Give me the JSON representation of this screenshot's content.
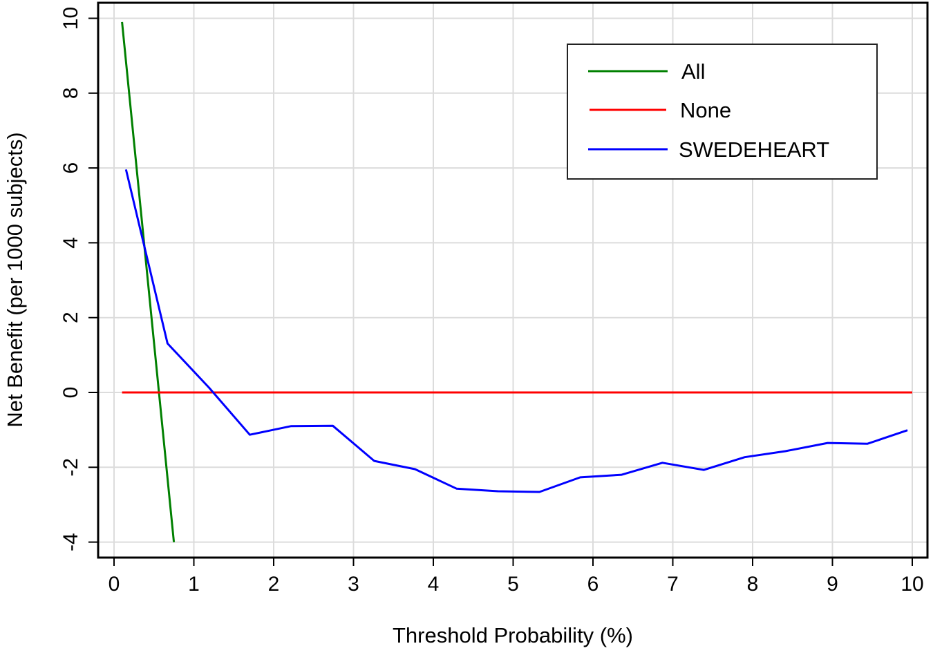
{
  "chart_data": {
    "type": "line",
    "title": "",
    "xlabel": "Threshold Probability (%)",
    "ylabel": "Net Benefit (per 1000 subjects)",
    "xlim": [
      -0.2,
      10.2
    ],
    "ylim": [
      -4.4,
      10.4
    ],
    "xticks": [
      0,
      1,
      2,
      3,
      4,
      5,
      6,
      7,
      8,
      9,
      10
    ],
    "yticks": [
      -4,
      -2,
      0,
      2,
      4,
      6,
      8,
      10
    ],
    "grid": true,
    "legend_position": "upper right (inside)",
    "series": [
      {
        "name": "All",
        "color": "#008000",
        "x": [
          0.1,
          0.75
        ],
        "y": [
          9.9,
          -4.0
        ]
      },
      {
        "name": "None",
        "color": "#ff0000",
        "x": [
          0.1,
          10.0
        ],
        "y": [
          0.0,
          0.0
        ]
      },
      {
        "name": "SWEDEHEART",
        "color": "#0000ff",
        "x": [
          0.15,
          0.67,
          1.19,
          1.7,
          2.22,
          2.74,
          3.26,
          3.77,
          4.29,
          4.81,
          5.33,
          5.84,
          6.36,
          6.87,
          7.39,
          7.9,
          8.41,
          8.94,
          9.44,
          9.94
        ],
        "y": [
          5.96,
          1.31,
          0.13,
          -1.13,
          -0.9,
          -0.89,
          -1.83,
          -2.05,
          -2.57,
          -2.64,
          -2.66,
          -2.27,
          -2.2,
          -1.88,
          -2.07,
          -1.73,
          -1.57,
          -1.35,
          -1.37,
          -1.01
        ]
      }
    ]
  },
  "legend": {
    "items": [
      {
        "label": "All",
        "color": "#008000"
      },
      {
        "label": "None",
        "color": "#ff0000"
      },
      {
        "label": "SWEDEHEART",
        "color": "#0000ff"
      }
    ]
  },
  "axes": {
    "x_title": "Threshold Probability (%)",
    "y_title": "Net Benefit (per 1000 subjects)"
  }
}
